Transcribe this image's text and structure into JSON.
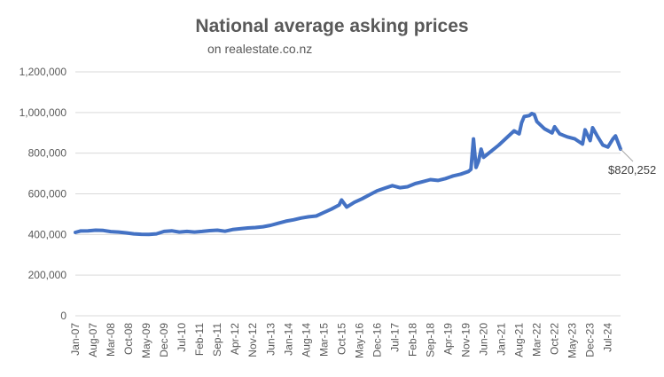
{
  "chart_data": {
    "type": "line",
    "title": "National average asking prices",
    "subtitle": "on realestate.co.nz",
    "xlabel": "",
    "ylabel": "",
    "ylim": [
      0,
      1200000
    ],
    "y_ticks": [
      "0",
      "200,000",
      "400,000",
      "600,000",
      "800,000",
      "1,000,000",
      "1,200,000"
    ],
    "x_tick_labels": [
      "Jan-07",
      "Aug-07",
      "Mar-08",
      "Oct-08",
      "May-09",
      "Dec-09",
      "Jul-10",
      "Feb-11",
      "Sep-11",
      "Apr-12",
      "Nov-12",
      "Jun-13",
      "Jan-14",
      "Aug-14",
      "Mar-15",
      "Oct-15",
      "May-16",
      "Dec-16",
      "Jul-17",
      "Feb-18",
      "Sep-18",
      "Apr-19",
      "Nov-19",
      "Jun-20",
      "Jan-21",
      "Aug-21",
      "Mar-22",
      "Oct-22",
      "May-23",
      "Dec-23",
      "Jul-24"
    ],
    "grid": true,
    "line_color": "#4472C4",
    "annotation": {
      "text": "$820,252",
      "x": "2024-12",
      "y": 820252
    },
    "series": [
      {
        "x": [
          "2007-01",
          "2007-03",
          "2007-06",
          "2007-09",
          "2007-12",
          "2008-03",
          "2008-06",
          "2008-09",
          "2008-12",
          "2009-03",
          "2009-06",
          "2009-09",
          "2009-12",
          "2010-03",
          "2010-06",
          "2010-09",
          "2010-12",
          "2011-03",
          "2011-06",
          "2011-09",
          "2011-12",
          "2012-03",
          "2012-06",
          "2012-09",
          "2012-12",
          "2013-03",
          "2013-06",
          "2013-09",
          "2013-12",
          "2014-03",
          "2014-06",
          "2014-09",
          "2014-12",
          "2015-03",
          "2015-06",
          "2015-09",
          "2015-10",
          "2015-12",
          "2016-03",
          "2016-06",
          "2016-09",
          "2016-12",
          "2017-03",
          "2017-06",
          "2017-09",
          "2017-12",
          "2018-03",
          "2018-06",
          "2018-09",
          "2018-12",
          "2019-03",
          "2019-06",
          "2019-09",
          "2019-12",
          "2020-01",
          "2020-02",
          "2020-03",
          "2020-04",
          "2020-05",
          "2020-06",
          "2020-07",
          "2020-09",
          "2020-12",
          "2021-03",
          "2021-06",
          "2021-08",
          "2021-09",
          "2021-10",
          "2021-12",
          "2022-01",
          "2022-02",
          "2022-03",
          "2022-06",
          "2022-09",
          "2022-10",
          "2022-12",
          "2023-03",
          "2023-06",
          "2023-09",
          "2023-10",
          "2023-12",
          "2024-01",
          "2024-03",
          "2024-05",
          "2024-07",
          "2024-09",
          "2024-10",
          "2024-12"
        ],
        "y": [
          410000,
          417000,
          418000,
          421000,
          420000,
          414000,
          412000,
          408000,
          403000,
          401000,
          400000,
          403000,
          415000,
          418000,
          412000,
          415000,
          412000,
          415000,
          419000,
          421000,
          416000,
          424000,
          428000,
          432000,
          434000,
          438000,
          445000,
          455000,
          465000,
          472000,
          481000,
          487000,
          491000,
          508000,
          525000,
          545000,
          570000,
          535000,
          558000,
          575000,
          595000,
          615000,
          628000,
          640000,
          630000,
          635000,
          650000,
          660000,
          670000,
          666000,
          675000,
          688000,
          697000,
          710000,
          720000,
          870000,
          730000,
          760000,
          820000,
          780000,
          790000,
          810000,
          840000,
          875000,
          910000,
          895000,
          950000,
          980000,
          985000,
          995000,
          990000,
          955000,
          920000,
          900000,
          930000,
          895000,
          880000,
          870000,
          845000,
          915000,
          862000,
          925000,
          880000,
          840000,
          830000,
          870000,
          885000,
          820252
        ]
      }
    ]
  }
}
